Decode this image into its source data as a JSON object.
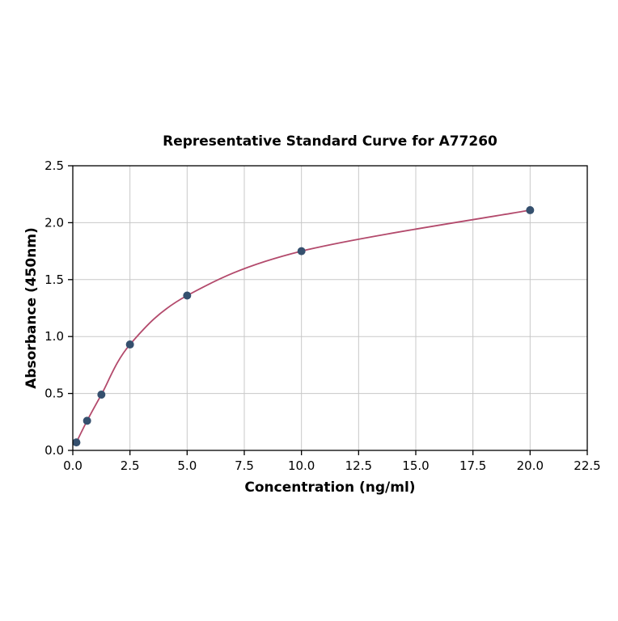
{
  "chart_data": {
    "type": "scatter",
    "title": "Representative Standard Curve for A77260",
    "xlabel": "Concentration (ng/ml)",
    "ylabel": "Absorbance (450nm)",
    "x": [
      0.156,
      0.625,
      1.25,
      2.5,
      5,
      10,
      20
    ],
    "y": [
      0.07,
      0.26,
      0.49,
      0.93,
      1.36,
      1.75,
      2.11
    ],
    "xlim": [
      0,
      22.5
    ],
    "ylim": [
      0,
      2.5
    ],
    "xticks": [
      0,
      2.5,
      5,
      7.5,
      10,
      12.5,
      15,
      17.5,
      20,
      22.5
    ],
    "xtick_labels": [
      "0.0",
      "2.5",
      "5.0",
      "7.5",
      "10.0",
      "12.5",
      "15.0",
      "17.5",
      "20.0",
      "22.5"
    ],
    "yticks": [
      0,
      0.5,
      1,
      1.5,
      2,
      2.5
    ],
    "ytick_labels": [
      "0.0",
      "0.5",
      "1.0",
      "1.5",
      "2.0",
      "2.5"
    ],
    "grid": true,
    "legend": "none",
    "colors": {
      "curve": "#b34a6c",
      "marker": "#35506e",
      "grid": "#c8c8c8",
      "axis": "#000000",
      "background": "#ffffff"
    }
  }
}
